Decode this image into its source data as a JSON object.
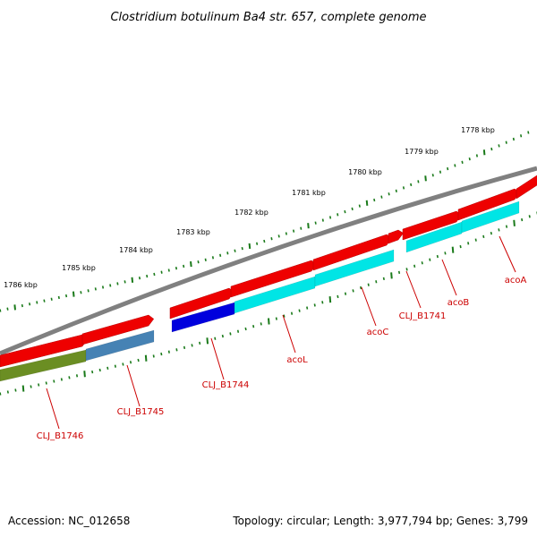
{
  "title": "Clostridium botulinum Ba4 str. 657, complete genome",
  "footer": {
    "accession": "Accession: NC_012658",
    "topology": "Topology: circular; Length: 3,977,794 bp; Genes: 3,799"
  },
  "colors": {
    "backbone": "#808080",
    "tick": "#1a7a1a",
    "cds_red": "#ee0000",
    "label": "#cc0000"
  },
  "scale_labels": [
    "1778 kbp",
    "1779 kbp",
    "1780 kbp",
    "1781 kbp",
    "1782 kbp",
    "1783 kbp",
    "1784 kbp",
    "1785 kbp",
    "1786 kbp"
  ],
  "gene_labels": [
    "acoA",
    "acoB",
    "CLJ_B1741",
    "acoC",
    "acoL",
    "CLJ_B1744",
    "CLJ_B1745",
    "CLJ_B1746"
  ],
  "gene_colors": {
    "acoA": "#00e5e5",
    "acoB": "#00e5e5",
    "acoC": "#00e5e5",
    "acoL": "#00e5e5",
    "CLJ_B1744": "#0000dd",
    "CLJ_B1745": "#4682b4",
    "CLJ_B1746": "#6b8e23"
  }
}
